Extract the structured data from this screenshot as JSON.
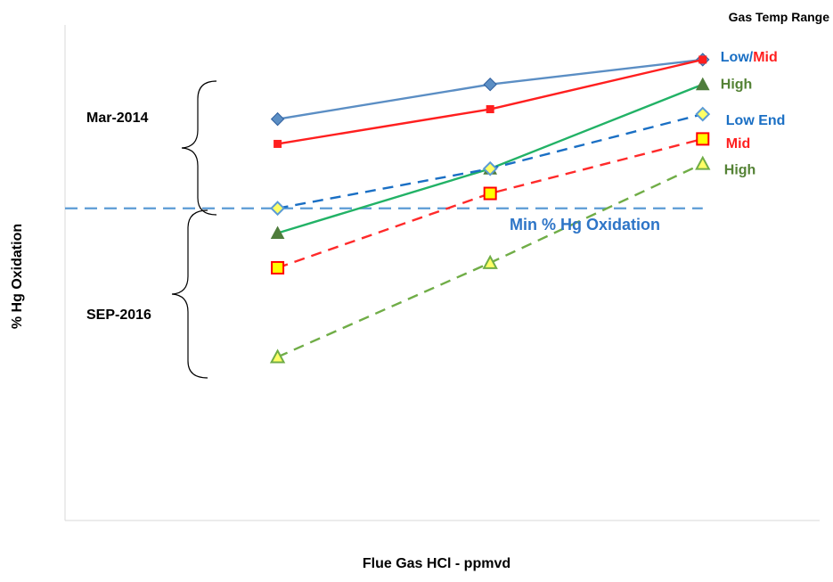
{
  "chart_data": {
    "type": "line",
    "title": "",
    "xlabel": "Flue Gas HCl - ppmvd",
    "ylabel": "% Hg Oxidation",
    "x": [
      1,
      2,
      3
    ],
    "xlim": [
      0,
      3.55
    ],
    "ylim": [
      0,
      100
    ],
    "x_ticks_shown": false,
    "y_ticks_shown": false,
    "grid": false,
    "legend_title": "Gas Temp Range",
    "series": [
      {
        "name": "Low",
        "group": "Mar-2014",
        "values": [
          81,
          88,
          93
        ],
        "color": "#5b8ec4",
        "dash": "solid",
        "marker": "diamond"
      },
      {
        "name": "Mid",
        "group": "Mar-2014",
        "values": [
          76,
          83,
          93
        ],
        "color": "#ff1f1f",
        "dash": "solid",
        "marker": "square"
      },
      {
        "name": "High",
        "group": "Mar-2014",
        "values": [
          58,
          71,
          88
        ],
        "color": "#22b266",
        "dash": "solid",
        "marker": "triangle"
      },
      {
        "name": "Low End",
        "group": "SEP-2016",
        "values": [
          63,
          71,
          82
        ],
        "color": "#1a6fc4",
        "dash": "dashed",
        "marker": "diamond-open"
      },
      {
        "name": "Mid",
        "group": "SEP-2016",
        "values": [
          51,
          66,
          77
        ],
        "color": "#ff2a2a",
        "dash": "dashed",
        "marker": "square-open"
      },
      {
        "name": "High",
        "group": "SEP-2016",
        "values": [
          33,
          52,
          72
        ],
        "color": "#70ad47",
        "dash": "dashed",
        "marker": "triangle-open"
      }
    ],
    "annotations": [
      {
        "name": "min-line-label",
        "text": "Min % Hg Oxidation",
        "color": "#2e75c7"
      },
      {
        "name": "group-label-2014",
        "text": "Mar-2014"
      },
      {
        "name": "group-label-2016",
        "text": "SEP-2016"
      }
    ],
    "reference_line": {
      "y": 63,
      "color": "#5b9bd5",
      "style": "dashed",
      "label": "Min % Hg Oxidation"
    },
    "legend": [
      {
        "text": "Low",
        "color": "#1a6fc4",
        "series": 0
      },
      {
        "text": " / ",
        "color": "#1a6fc4"
      },
      {
        "text": "Mid",
        "color": "#ff1f1f",
        "series": 1
      },
      {
        "text": "High",
        "color": "#548235",
        "series": 2
      },
      {
        "text": "Low End",
        "color": "#1a6fc4",
        "series": 3
      },
      {
        "text": "Mid",
        "color": "#ff1f1f",
        "series": 4
      },
      {
        "text": "High",
        "color": "#548235",
        "series": 5
      }
    ],
    "legend_placement": "right"
  }
}
